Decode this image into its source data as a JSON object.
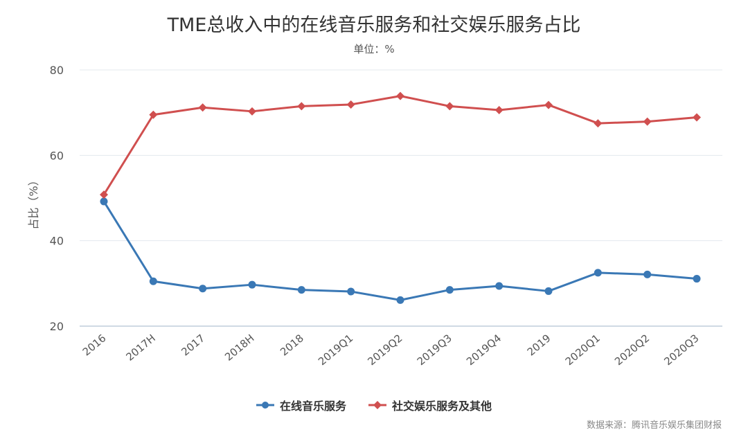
{
  "chart_data": {
    "type": "line",
    "title": "TME总收入中的在线音乐服务和社交娱乐服务占比",
    "subtitle": "单位：%",
    "ylabel": "占比（%）",
    "xlabel": "",
    "categories": [
      "2016",
      "2017H",
      "2017",
      "2018H",
      "2018",
      "2019Q1",
      "2019Q2",
      "2019Q3",
      "2019Q4",
      "2019",
      "2020Q1",
      "2020Q2",
      "2020Q3"
    ],
    "ylim": [
      20,
      80
    ],
    "yticks": [
      20,
      40,
      60,
      80
    ],
    "grid": true,
    "legend_position": "bottom",
    "series": [
      {
        "name": "在线音乐服务",
        "color": "#3a78b5",
        "marker": "circle",
        "values": [
          49.2,
          30.5,
          28.8,
          29.7,
          28.5,
          28.1,
          26.1,
          28.5,
          29.4,
          28.2,
          32.5,
          32.1,
          31.1
        ]
      },
      {
        "name": "社交娱乐服务及其他",
        "color": "#d04f4f",
        "marker": "diamond",
        "values": [
          50.8,
          69.5,
          71.2,
          70.3,
          71.5,
          71.9,
          73.9,
          71.5,
          70.6,
          71.8,
          67.5,
          67.9,
          68.9
        ]
      }
    ],
    "source": "数据来源：腾讯音乐娱乐集团财报"
  }
}
